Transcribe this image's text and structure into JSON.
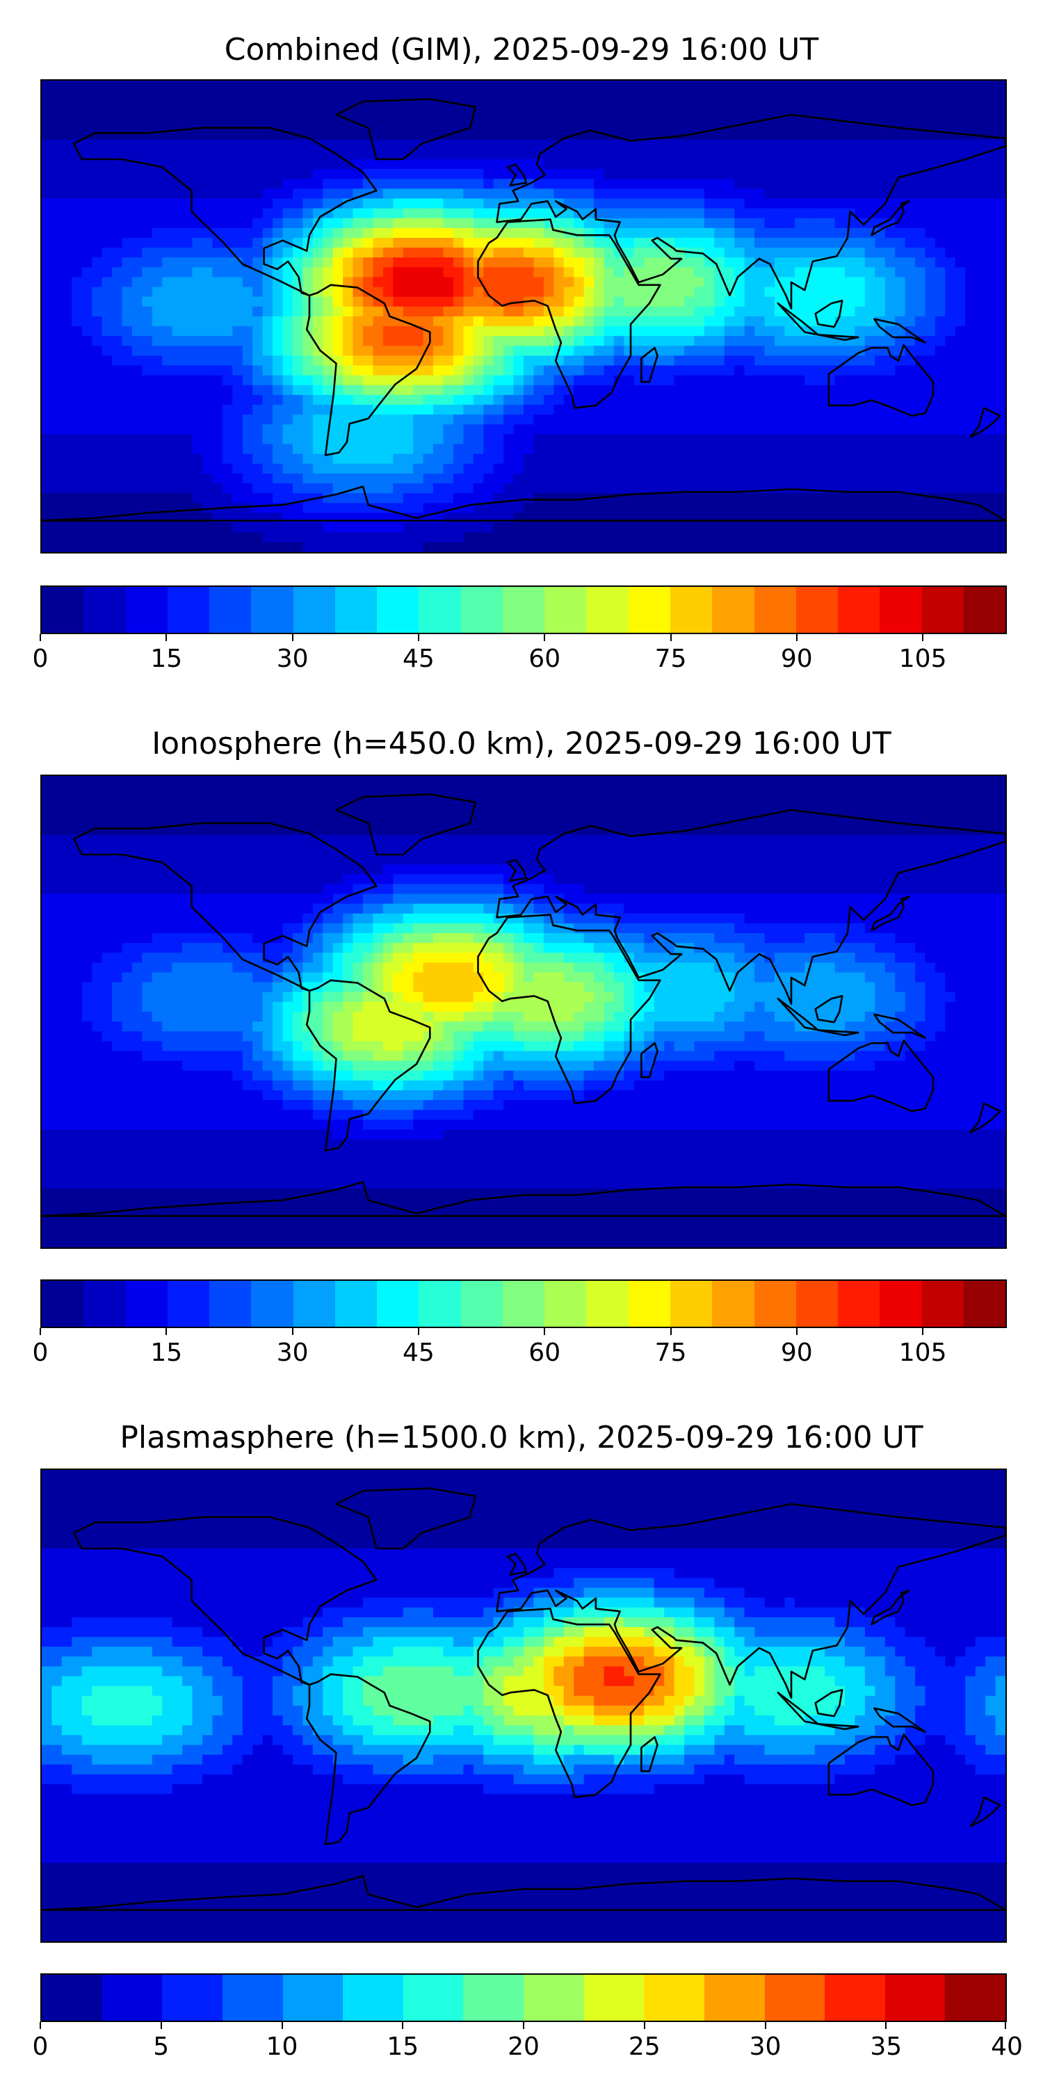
{
  "chart_data": [
    {
      "type": "heatmap",
      "title": "Combined (GIM), 2025-09-29 16:00 UT",
      "colorbar": {
        "min": 0,
        "max": 115,
        "step": 5,
        "ticks": [
          0,
          15,
          30,
          45,
          60,
          75,
          90,
          105
        ]
      },
      "features": [
        {
          "lon": -38,
          "lat": 13,
          "value": 105
        },
        {
          "lon": -5,
          "lat": 12,
          "value": 95
        },
        {
          "lon": -45,
          "lat": -8,
          "value": 92
        },
        {
          "lon": 50,
          "lat": 12,
          "value": 60
        },
        {
          "lon": 110,
          "lat": 8,
          "value": 45
        },
        {
          "lon": -120,
          "lat": 5,
          "value": 35
        },
        {
          "lon": -60,
          "lat": -45,
          "value": 40
        },
        {
          "lon": 0,
          "lat": 80,
          "value": 5
        }
      ]
    },
    {
      "type": "heatmap",
      "title": "Ionosphere  (h=450.0 km), 2025-09-29 16:00 UT",
      "colorbar": {
        "min": 0,
        "max": 115,
        "step": 5,
        "ticks": [
          0,
          15,
          30,
          45,
          60,
          75,
          90,
          105
        ]
      },
      "features": [
        {
          "lon": -28,
          "lat": 12,
          "value": 80
        },
        {
          "lon": -50,
          "lat": -5,
          "value": 70
        },
        {
          "lon": 10,
          "lat": 5,
          "value": 65
        },
        {
          "lon": 60,
          "lat": 8,
          "value": 40
        },
        {
          "lon": 110,
          "lat": 5,
          "value": 35
        },
        {
          "lon": -120,
          "lat": 5,
          "value": 30
        },
        {
          "lon": 0,
          "lat": 80,
          "value": 3
        }
      ]
    },
    {
      "type": "heatmap",
      "title": "Plasmasphere (h=1500.0 km), 2025-09-29 16:00 UT",
      "colorbar": {
        "min": 0,
        "max": 40,
        "step": 2.5,
        "ticks": [
          0,
          5,
          10,
          15,
          20,
          25,
          30,
          35,
          40
        ]
      },
      "features": [
        {
          "lon": 35,
          "lat": 10,
          "value": 33
        },
        {
          "lon": 10,
          "lat": 5,
          "value": 25
        },
        {
          "lon": -40,
          "lat": 5,
          "value": 20
        },
        {
          "lon": 100,
          "lat": 5,
          "value": 17
        },
        {
          "lon": -150,
          "lat": 0,
          "value": 16
        },
        {
          "lon": 0,
          "lat": 70,
          "value": 2
        },
        {
          "lon": -150,
          "lat": -40,
          "value": 2
        }
      ]
    }
  ]
}
